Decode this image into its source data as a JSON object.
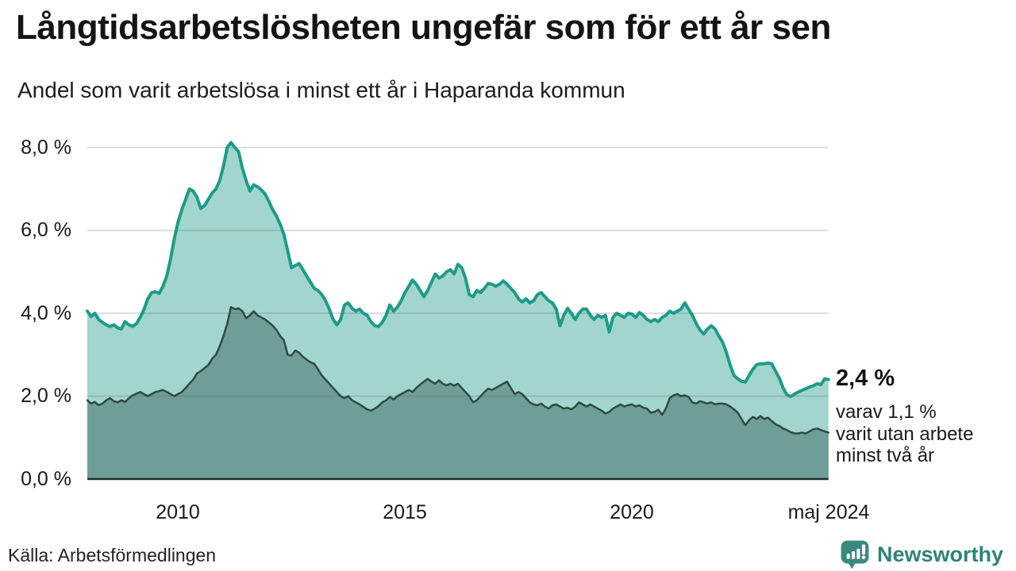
{
  "header": {
    "title": "Långtidsarbetslösheten ungefär som för ett år sen",
    "subtitle": "Andel som varit arbetslösa i minst ett år i Haparanda kommun"
  },
  "chart_data": {
    "type": "area",
    "title": "Långtidsarbetslösheten ungefär som för ett år sen",
    "subtitle": "Andel som varit arbetslösa i minst ett år i Haparanda kommun",
    "unit": "%",
    "grid": true,
    "x_domain": [
      2008.0,
      2024.3333
    ],
    "ylim": [
      0,
      8.4
    ],
    "start_year": 2008,
    "points_per_year": 12,
    "yticks": [
      {
        "value": 0,
        "label": "0,0 %"
      },
      {
        "value": 2,
        "label": "2,0 %"
      },
      {
        "value": 4,
        "label": "4,0 %"
      },
      {
        "value": 6,
        "label": "6,0 %"
      },
      {
        "value": 8,
        "label": "8,0 %"
      }
    ],
    "xticks": [
      {
        "year": 2010,
        "label": "2010"
      },
      {
        "year": 2015,
        "label": "2015"
      },
      {
        "year": 2020,
        "label": "2020"
      },
      {
        "year": 2024.3333,
        "label": "maj 2024"
      }
    ],
    "series": [
      {
        "name": "Arbetslösa minst ett år",
        "color": "#1d9b89",
        "fill": "#a2d5cd",
        "width": 4,
        "end_value": 2.4,
        "values": [
          4.05,
          3.92,
          4.0,
          3.85,
          3.78,
          3.72,
          3.68,
          3.72,
          3.65,
          3.62,
          3.8,
          3.72,
          3.68,
          3.75,
          3.9,
          4.1,
          4.35,
          4.5,
          4.52,
          4.48,
          4.65,
          4.9,
          5.3,
          5.8,
          6.2,
          6.5,
          6.75,
          7.0,
          6.95,
          6.8,
          6.53,
          6.6,
          6.75,
          6.9,
          7.0,
          7.2,
          7.55,
          8.0,
          8.12,
          8.0,
          7.9,
          7.5,
          7.2,
          6.95,
          7.1,
          7.05,
          6.98,
          6.88,
          6.7,
          6.5,
          6.35,
          6.15,
          5.9,
          5.5,
          5.1,
          5.15,
          5.2,
          5.05,
          4.9,
          4.75,
          4.6,
          4.55,
          4.45,
          4.3,
          4.1,
          3.85,
          3.72,
          3.85,
          4.2,
          4.25,
          4.12,
          4.05,
          4.1,
          4.0,
          3.95,
          3.8,
          3.7,
          3.68,
          3.78,
          3.95,
          4.2,
          4.05,
          4.15,
          4.3,
          4.5,
          4.65,
          4.8,
          4.7,
          4.55,
          4.4,
          4.55,
          4.75,
          4.95,
          4.85,
          4.9,
          5.0,
          5.05,
          4.95,
          5.18,
          5.1,
          4.85,
          4.45,
          4.4,
          4.55,
          4.5,
          4.6,
          4.72,
          4.7,
          4.65,
          4.7,
          4.78,
          4.7,
          4.6,
          4.5,
          4.35,
          4.27,
          4.35,
          4.25,
          4.3,
          4.45,
          4.5,
          4.4,
          4.3,
          4.25,
          4.1,
          3.7,
          3.95,
          4.12,
          4.0,
          3.85,
          4.0,
          4.1,
          4.1,
          3.95,
          3.85,
          3.95,
          3.9,
          3.95,
          3.55,
          3.9,
          4.0,
          3.95,
          3.9,
          4.0,
          3.98,
          3.9,
          4.02,
          3.95,
          3.85,
          3.8,
          3.85,
          3.8,
          3.9,
          3.95,
          4.05,
          4.0,
          4.05,
          4.1,
          4.25,
          4.1,
          3.95,
          3.75,
          3.6,
          3.5,
          3.62,
          3.7,
          3.62,
          3.45,
          3.3,
          3.05,
          2.75,
          2.5,
          2.42,
          2.36,
          2.34,
          2.5,
          2.65,
          2.76,
          2.78,
          2.78,
          2.8,
          2.78,
          2.6,
          2.43,
          2.2,
          2.03,
          1.99,
          2.05,
          2.1,
          2.14,
          2.18,
          2.22,
          2.25,
          2.3,
          2.28,
          2.42,
          2.4
        ]
      },
      {
        "name": "Arbetslösa minst två år",
        "color": "#2d4a45",
        "fill": "#6f9e98",
        "width": 2.5,
        "end_value": 1.1,
        "values": [
          1.9,
          1.82,
          1.86,
          1.78,
          1.82,
          1.9,
          1.95,
          1.88,
          1.85,
          1.9,
          1.86,
          1.95,
          2.02,
          2.06,
          2.1,
          2.05,
          2.0,
          2.05,
          2.1,
          2.12,
          2.15,
          2.1,
          2.05,
          2.0,
          2.05,
          2.1,
          2.2,
          2.3,
          2.4,
          2.55,
          2.6,
          2.68,
          2.75,
          2.9,
          3.0,
          3.2,
          3.45,
          3.75,
          4.15,
          4.1,
          4.12,
          4.05,
          3.88,
          3.95,
          4.05,
          3.95,
          3.9,
          3.85,
          3.78,
          3.7,
          3.6,
          3.45,
          3.35,
          3.0,
          2.98,
          3.1,
          3.05,
          2.95,
          2.88,
          2.82,
          2.78,
          2.65,
          2.5,
          2.4,
          2.3,
          2.2,
          2.1,
          2.0,
          1.95,
          2.0,
          1.9,
          1.85,
          1.8,
          1.74,
          1.68,
          1.65,
          1.7,
          1.76,
          1.85,
          1.9,
          1.98,
          1.92,
          2.0,
          2.05,
          2.1,
          2.15,
          2.1,
          2.2,
          2.28,
          2.35,
          2.42,
          2.35,
          2.3,
          2.38,
          2.3,
          2.26,
          2.3,
          2.25,
          2.3,
          2.2,
          2.1,
          2.0,
          1.85,
          1.9,
          2.0,
          2.1,
          2.18,
          2.15,
          2.2,
          2.25,
          2.3,
          2.35,
          2.2,
          2.05,
          2.1,
          2.05,
          1.95,
          1.85,
          1.8,
          1.78,
          1.82,
          1.75,
          1.7,
          1.78,
          1.8,
          1.75,
          1.7,
          1.72,
          1.68,
          1.75,
          1.85,
          1.8,
          1.75,
          1.8,
          1.75,
          1.7,
          1.65,
          1.58,
          1.62,
          1.7,
          1.75,
          1.8,
          1.75,
          1.78,
          1.8,
          1.75,
          1.78,
          1.72,
          1.7,
          1.6,
          1.62,
          1.67,
          1.55,
          1.7,
          1.95,
          2.02,
          2.05,
          2.0,
          2.02,
          1.98,
          1.85,
          1.82,
          1.88,
          1.85,
          1.82,
          1.85,
          1.8,
          1.82,
          1.82,
          1.8,
          1.75,
          1.68,
          1.6,
          1.45,
          1.3,
          1.42,
          1.5,
          1.45,
          1.52,
          1.45,
          1.48,
          1.4,
          1.32,
          1.28,
          1.22,
          1.18,
          1.13,
          1.1,
          1.1,
          1.12,
          1.1,
          1.15,
          1.2,
          1.22,
          1.18,
          1.15,
          1.12
        ]
      }
    ],
    "colors": {
      "grid": "#dddddd",
      "axis": "#1f2a28",
      "background": "#ffffff"
    }
  },
  "annotation": {
    "value_label": "2,4 %",
    "sub_lines": [
      "varav 1,1 %",
      "varit utan arbete",
      "minst två år"
    ]
  },
  "footer": {
    "source": "Källa: Arbetsförmedlingen",
    "brand": "Newsworthy",
    "brand_color": "#2e8378",
    "icon_color": "#3a8a80",
    "logo_icon": "bar-chart-speech-bubble"
  }
}
